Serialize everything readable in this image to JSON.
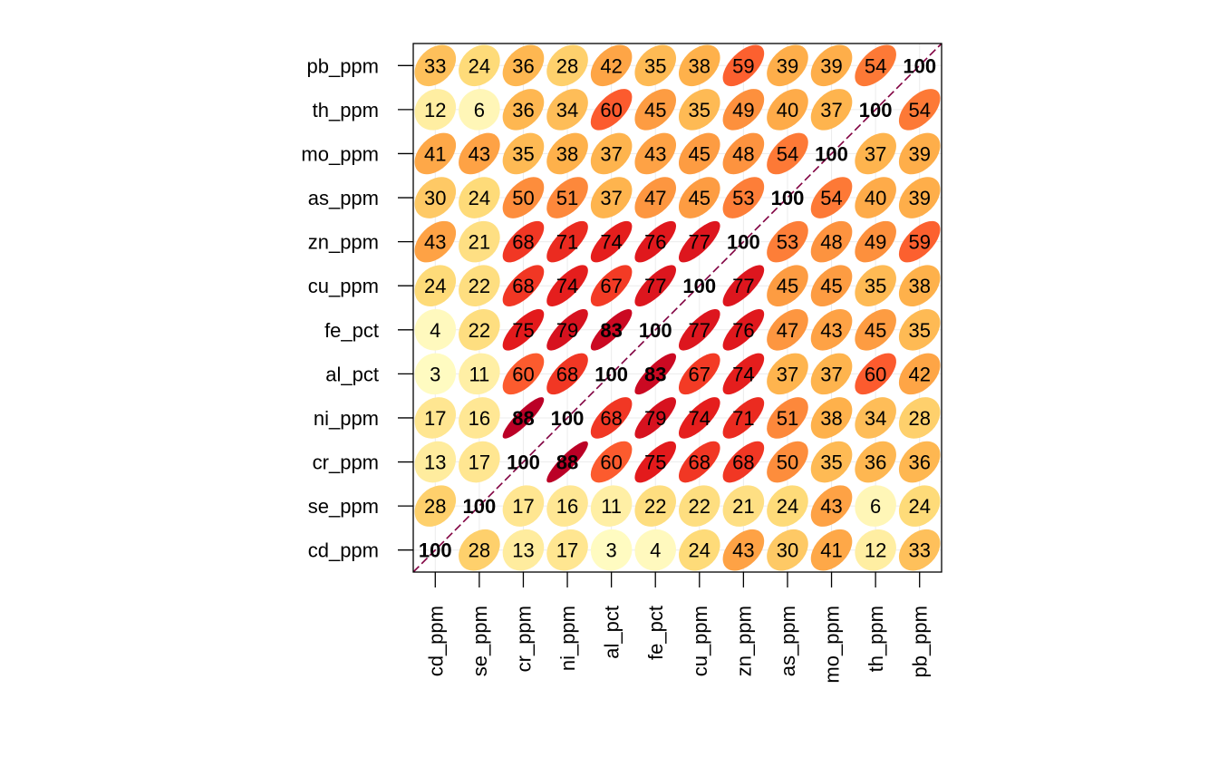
{
  "chart_data": {
    "type": "heatmap",
    "subtype": "correlation-ellipse",
    "variables": [
      "cd_ppm",
      "se_ppm",
      "cr_ppm",
      "ni_ppm",
      "al_pct",
      "fe_pct",
      "cu_ppm",
      "zn_ppm",
      "as_ppm",
      "mo_ppm",
      "th_ppm",
      "pb_ppm"
    ],
    "matrix": [
      [
        100,
        28,
        13,
        17,
        3,
        4,
        24,
        43,
        30,
        41,
        12,
        33
      ],
      [
        28,
        100,
        17,
        16,
        11,
        22,
        22,
        21,
        24,
        43,
        6,
        24
      ],
      [
        13,
        17,
        100,
        88,
        60,
        75,
        68,
        68,
        50,
        35,
        36,
        36
      ],
      [
        17,
        16,
        88,
        100,
        68,
        79,
        74,
        71,
        51,
        38,
        34,
        28
      ],
      [
        3,
        11,
        60,
        68,
        100,
        83,
        67,
        74,
        37,
        37,
        60,
        42
      ],
      [
        4,
        22,
        75,
        79,
        83,
        100,
        77,
        76,
        47,
        43,
        45,
        35
      ],
      [
        24,
        22,
        68,
        74,
        67,
        77,
        100,
        77,
        45,
        45,
        35,
        38
      ],
      [
        43,
        21,
        68,
        71,
        74,
        76,
        77,
        100,
        53,
        48,
        49,
        59
      ],
      [
        30,
        24,
        50,
        51,
        37,
        47,
        45,
        53,
        100,
        54,
        40,
        39
      ],
      [
        41,
        43,
        35,
        38,
        37,
        43,
        45,
        48,
        54,
        100,
        37,
        39
      ],
      [
        12,
        6,
        36,
        34,
        60,
        45,
        35,
        49,
        40,
        37,
        100,
        54
      ],
      [
        33,
        24,
        36,
        28,
        42,
        35,
        38,
        59,
        39,
        39,
        54,
        100
      ]
    ],
    "value_scale": "correlation x 100",
    "bold_labels_at_or_above": 80,
    "color_scale": [
      "#ffffcc",
      "#ffeda0",
      "#fed976",
      "#feb24c",
      "#fd8d3c",
      "#fc4e2a",
      "#e31a1c",
      "#bd0026",
      "#800026"
    ],
    "diagonal_line_color": "#800040",
    "grid": true,
    "legend": "none",
    "title": "",
    "xlabel": "",
    "ylabel": ""
  }
}
